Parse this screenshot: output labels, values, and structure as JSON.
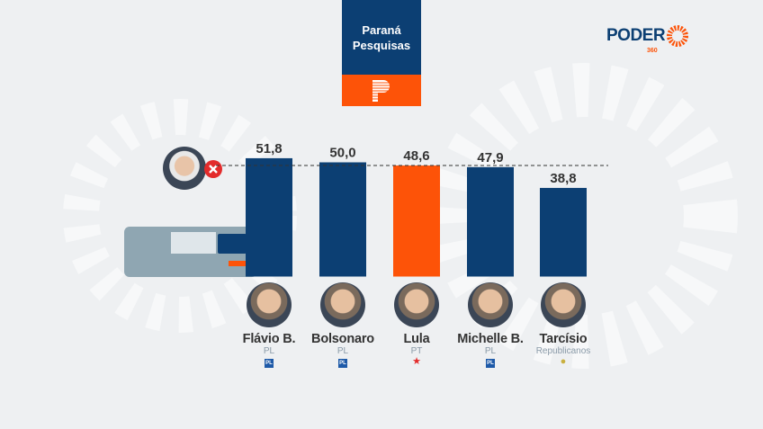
{
  "source": {
    "name_line1": "Paraná",
    "name_line2": "Pesquisas"
  },
  "publisher": {
    "name": "PODER",
    "suffix": "360"
  },
  "colors": {
    "pl": "#0c3f73",
    "pt": "#fd5308",
    "accent": "#fd5308"
  },
  "chart_data": {
    "type": "bar",
    "categories": [
      "Flávio B.",
      "Bolsonaro",
      "Lula",
      "Michelle B.",
      "Tarcísio"
    ],
    "values": [
      51.8,
      50.0,
      48.6,
      47.9,
      38.8
    ],
    "labels": [
      "51,8",
      "50,0",
      "48,6",
      "47,9",
      "38,8"
    ],
    "parties": [
      "PL",
      "PL",
      "PT",
      "PL",
      "Republicanos"
    ],
    "bar_colors": [
      "#0c3f73",
      "#0c3f73",
      "#fd5308",
      "#0c3f73",
      "#0c3f73"
    ],
    "reference_line": {
      "value": 48.6,
      "style": "dashed"
    },
    "ylim": [
      0,
      60
    ],
    "title": "",
    "xlabel": "",
    "ylabel": ""
  }
}
